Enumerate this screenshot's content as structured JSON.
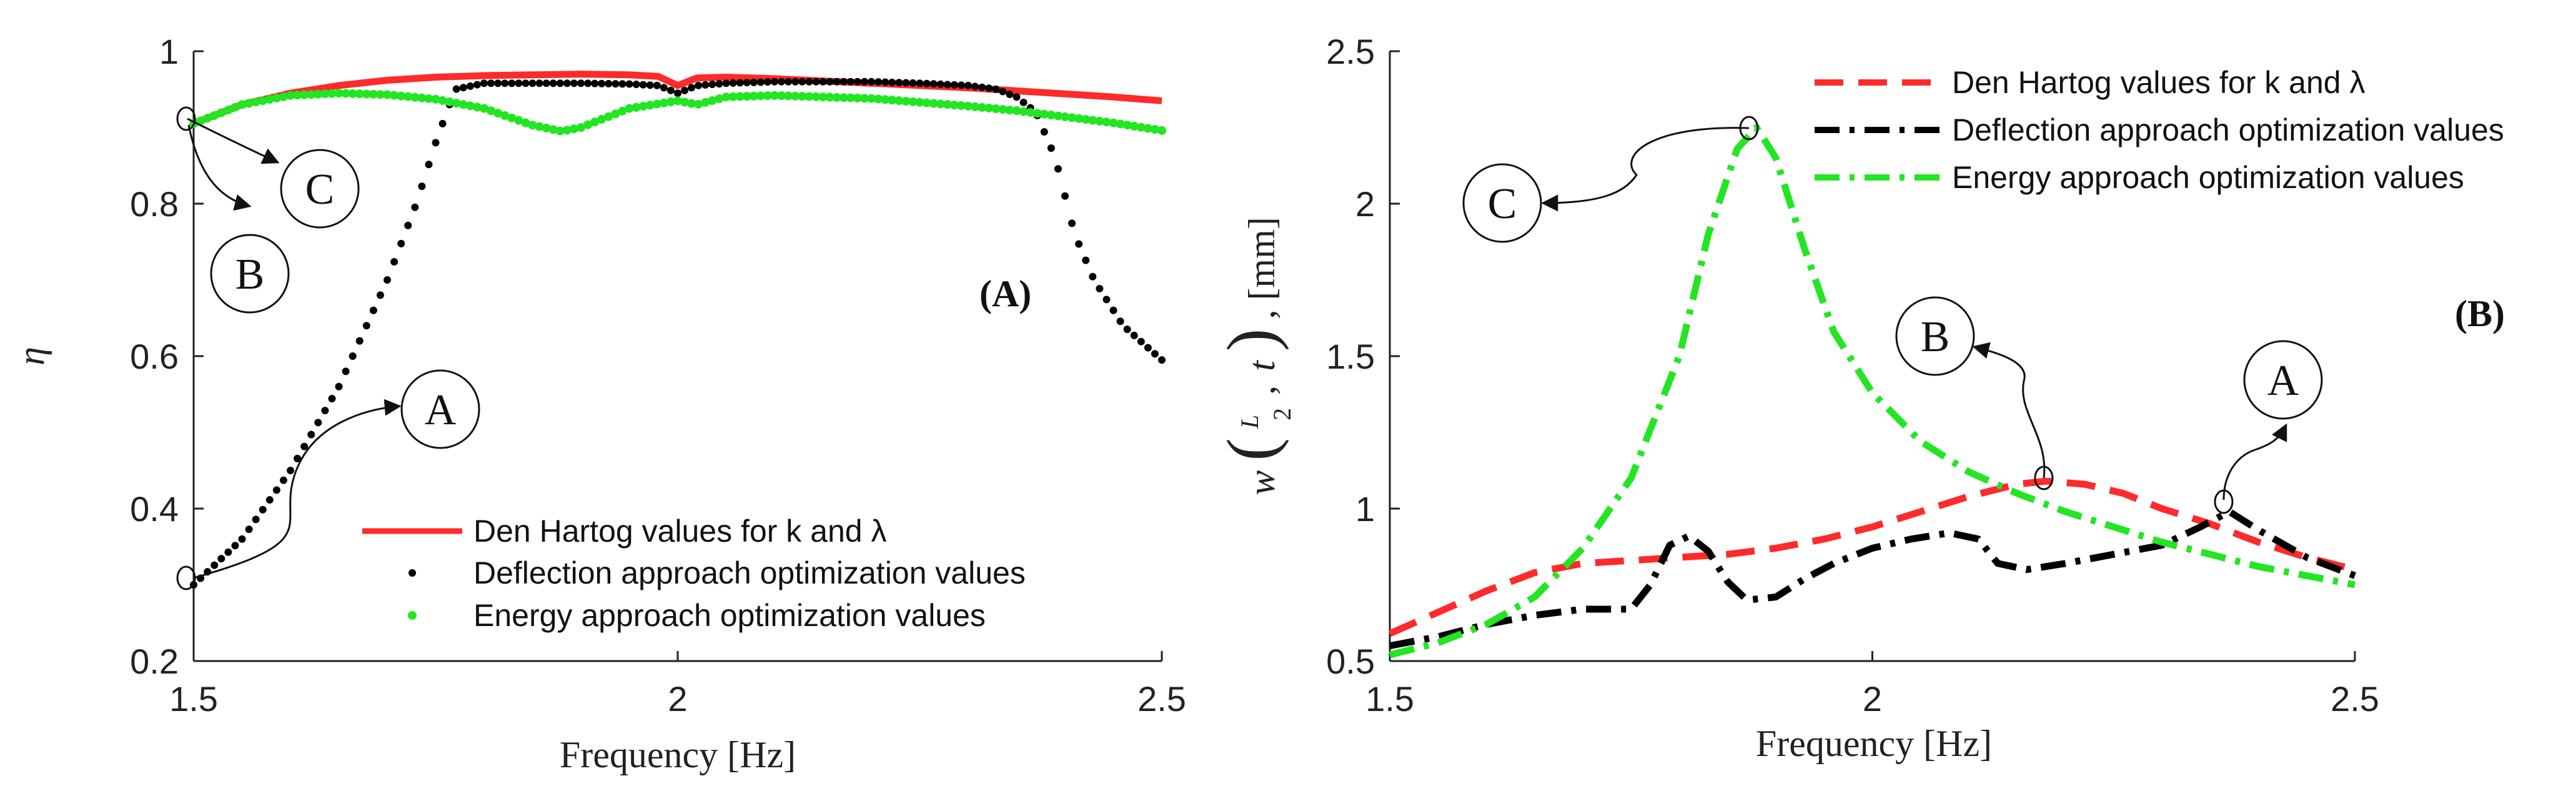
{
  "colors": {
    "den_hartog": "#ff2a2a",
    "deflection": "#000000",
    "energy": "#22e622",
    "axis": "#222222"
  },
  "chart_data": [
    {
      "type": "line",
      "panel_tag": "(A)",
      "xlabel": "Frequency [Hz]",
      "ylabel": "η",
      "xlim": [
        1.5,
        2.5
      ],
      "ylim": [
        0.2,
        1.0
      ],
      "xticks": [
        1.5,
        2,
        2.5
      ],
      "xtick_labels": [
        "1.5",
        "2",
        "2.5"
      ],
      "yticks": [
        0.2,
        0.4,
        0.6,
        0.8,
        1.0
      ],
      "ytick_labels": [
        "0.2",
        "0.4",
        "0.6",
        "0.8",
        "1"
      ],
      "legend_position": "bottom-right",
      "series": [
        {
          "name": "Den Hartog values for k and λ",
          "style": "solid",
          "x": [
            1.5,
            1.55,
            1.6,
            1.65,
            1.7,
            1.75,
            1.8,
            1.85,
            1.9,
            1.95,
            1.98,
            2.0,
            2.02,
            2.05,
            2.1,
            2.15,
            2.2,
            2.25,
            2.3,
            2.35,
            2.4,
            2.45,
            2.5
          ],
          "y": [
            0.905,
            0.93,
            0.945,
            0.955,
            0.962,
            0.966,
            0.968,
            0.969,
            0.97,
            0.969,
            0.967,
            0.955,
            0.965,
            0.966,
            0.964,
            0.961,
            0.958,
            0.955,
            0.952,
            0.948,
            0.944,
            0.94,
            0.935
          ]
        },
        {
          "name": "Deflection approach optimization values",
          "style": "dots",
          "x": [
            1.5,
            1.55,
            1.6,
            1.65,
            1.7,
            1.73,
            1.75,
            1.77,
            1.8,
            1.85,
            1.9,
            1.95,
            1.98,
            2.0,
            2.02,
            2.05,
            2.1,
            2.15,
            2.2,
            2.25,
            2.3,
            2.33,
            2.35,
            2.37,
            2.39,
            2.41,
            2.43,
            2.46,
            2.5
          ],
          "y": [
            0.3,
            0.36,
            0.45,
            0.56,
            0.7,
            0.8,
            0.88,
            0.95,
            0.958,
            0.958,
            0.958,
            0.957,
            0.955,
            0.945,
            0.955,
            0.958,
            0.96,
            0.96,
            0.96,
            0.958,
            0.955,
            0.95,
            0.94,
            0.92,
            0.86,
            0.76,
            0.7,
            0.64,
            0.595
          ]
        },
        {
          "name": "Energy approach optimization values",
          "style": "dots",
          "x": [
            1.5,
            1.55,
            1.6,
            1.65,
            1.7,
            1.75,
            1.8,
            1.85,
            1.88,
            1.9,
            1.95,
            2.0,
            2.02,
            2.05,
            2.1,
            2.15,
            2.2,
            2.25,
            2.3,
            2.35,
            2.4,
            2.45,
            2.5
          ],
          "y": [
            0.905,
            0.93,
            0.942,
            0.945,
            0.943,
            0.937,
            0.925,
            0.903,
            0.895,
            0.9,
            0.925,
            0.935,
            0.93,
            0.94,
            0.942,
            0.94,
            0.938,
            0.933,
            0.928,
            0.922,
            0.914,
            0.906,
            0.896
          ]
        }
      ],
      "annotations": [
        {
          "label": "A",
          "x": 1.5,
          "y": 0.3
        },
        {
          "label": "B",
          "x": 1.5,
          "y": 0.905
        },
        {
          "label": "C",
          "x": 1.5,
          "y": 0.905
        }
      ]
    },
    {
      "type": "line",
      "panel_tag": "(B)",
      "xlabel": "Frequency [Hz]",
      "ylabel": "w(L/2, t), [mm]",
      "ylabel_parts": {
        "w": "w",
        "frac_num": "L",
        "frac_den": "2",
        "t": "t",
        "unit": ", [mm]"
      },
      "xlim": [
        1.5,
        2.5
      ],
      "ylim": [
        0.5,
        2.5
      ],
      "xticks": [
        1.5,
        2,
        2.5
      ],
      "xtick_labels": [
        "1.5",
        "2",
        "2.5"
      ],
      "yticks": [
        0.5,
        1.0,
        1.5,
        2.0,
        2.5
      ],
      "ytick_labels": [
        "0.5",
        "1",
        "1.5",
        "2",
        "2.5"
      ],
      "legend_position": "top-right",
      "series": [
        {
          "name": "Den Hartog values for k and λ",
          "style": "dashed",
          "x": [
            1.5,
            1.55,
            1.6,
            1.65,
            1.7,
            1.75,
            1.8,
            1.85,
            1.9,
            1.95,
            2.0,
            2.05,
            2.1,
            2.15,
            2.18,
            2.22,
            2.26,
            2.3,
            2.35,
            2.4,
            2.45,
            2.5
          ],
          "y": [
            0.59,
            0.66,
            0.73,
            0.79,
            0.82,
            0.83,
            0.84,
            0.85,
            0.87,
            0.9,
            0.94,
            0.99,
            1.04,
            1.08,
            1.09,
            1.08,
            1.05,
            1.0,
            0.95,
            0.89,
            0.84,
            0.8
          ]
        },
        {
          "name": "Deflection approach optimization values",
          "style": "dashdot",
          "x": [
            1.5,
            1.55,
            1.6,
            1.65,
            1.7,
            1.75,
            1.77,
            1.79,
            1.81,
            1.83,
            1.85,
            1.87,
            1.9,
            1.93,
            1.96,
            2.0,
            2.04,
            2.08,
            2.11,
            2.13,
            2.16,
            2.2,
            2.25,
            2.3,
            2.34,
            2.37,
            2.4,
            2.45,
            2.5
          ],
          "y": [
            0.55,
            0.58,
            0.62,
            0.65,
            0.67,
            0.67,
            0.75,
            0.88,
            0.91,
            0.86,
            0.76,
            0.7,
            0.71,
            0.77,
            0.82,
            0.87,
            0.9,
            0.92,
            0.9,
            0.82,
            0.8,
            0.82,
            0.85,
            0.88,
            0.94,
            0.99,
            0.93,
            0.84,
            0.78
          ]
        },
        {
          "name": "Energy approach optimization values",
          "style": "dashdot",
          "x": [
            1.5,
            1.55,
            1.6,
            1.65,
            1.7,
            1.75,
            1.8,
            1.83,
            1.86,
            1.88,
            1.9,
            1.93,
            1.96,
            2.0,
            2.05,
            2.1,
            2.15,
            2.2,
            2.25,
            2.3,
            2.35,
            2.4,
            2.45,
            2.5
          ],
          "y": [
            0.52,
            0.56,
            0.62,
            0.71,
            0.87,
            1.1,
            1.5,
            1.9,
            2.18,
            2.25,
            2.15,
            1.85,
            1.58,
            1.38,
            1.22,
            1.12,
            1.05,
            0.99,
            0.94,
            0.89,
            0.85,
            0.81,
            0.78,
            0.75
          ]
        }
      ],
      "annotations": [
        {
          "label": "C",
          "x": 1.88,
          "y": 2.25
        },
        {
          "label": "B",
          "x": 2.18,
          "y": 1.09
        },
        {
          "label": "A",
          "x": 2.37,
          "y": 1.02
        }
      ]
    }
  ]
}
